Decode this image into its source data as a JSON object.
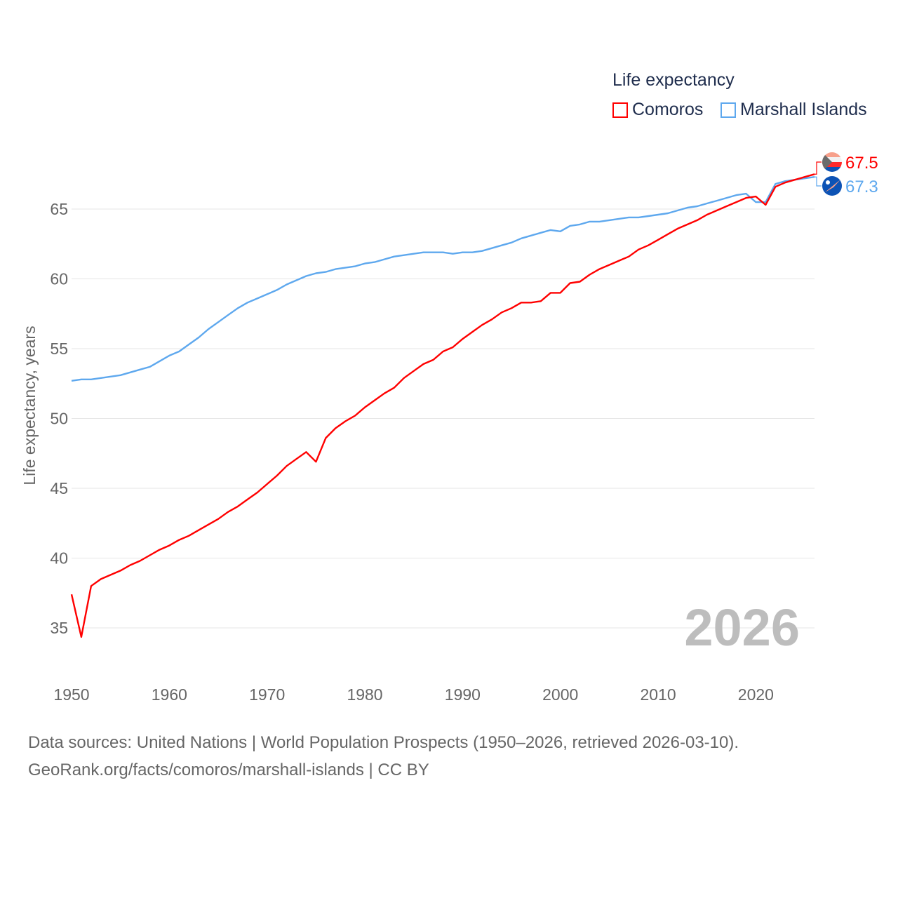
{
  "chart_data": {
    "type": "line",
    "title": "",
    "legend_title": "Life expectancy",
    "legend_position": "top-right",
    "xlabel": "",
    "ylabel": "Life expectancy, years",
    "xlim": [
      1950,
      2026
    ],
    "ylim": [
      35,
      65
    ],
    "x_ticks": [
      "1950",
      "1960",
      "1970",
      "1980",
      "1990",
      "2000",
      "2010",
      "2020"
    ],
    "y_ticks": [
      "35",
      "40",
      "45",
      "50",
      "55",
      "60",
      "65"
    ],
    "grid": true,
    "year_label": "2026",
    "x": [
      1950,
      1951,
      1952,
      1953,
      1954,
      1955,
      1956,
      1957,
      1958,
      1959,
      1960,
      1961,
      1962,
      1963,
      1964,
      1965,
      1966,
      1967,
      1968,
      1969,
      1970,
      1971,
      1972,
      1973,
      1974,
      1975,
      1976,
      1977,
      1978,
      1979,
      1980,
      1981,
      1982,
      1983,
      1984,
      1985,
      1986,
      1987,
      1988,
      1989,
      1990,
      1991,
      1992,
      1993,
      1994,
      1995,
      1996,
      1997,
      1998,
      1999,
      2000,
      2001,
      2002,
      2003,
      2004,
      2005,
      2006,
      2007,
      2008,
      2009,
      2010,
      2011,
      2012,
      2013,
      2014,
      2015,
      2016,
      2017,
      2018,
      2019,
      2020,
      2021,
      2022,
      2023,
      2024,
      2025,
      2026
    ],
    "series": [
      {
        "name": "Comoros",
        "color": "#ff0000",
        "end_label": "67.5",
        "values": [
          37.4,
          34.35,
          38.0,
          38.5,
          38.8,
          39.1,
          39.5,
          39.8,
          40.2,
          40.6,
          40.9,
          41.3,
          41.6,
          42.0,
          42.4,
          42.8,
          43.3,
          43.7,
          44.2,
          44.7,
          45.3,
          45.9,
          46.6,
          47.1,
          47.6,
          46.9,
          48.6,
          49.3,
          49.8,
          50.2,
          50.8,
          51.3,
          51.8,
          52.2,
          52.9,
          53.4,
          53.9,
          54.2,
          54.8,
          55.1,
          55.7,
          56.2,
          56.7,
          57.1,
          57.6,
          57.9,
          58.3,
          58.3,
          58.4,
          59.0,
          59.0,
          59.7,
          59.8,
          60.3,
          60.7,
          61.0,
          61.3,
          61.6,
          62.1,
          62.4,
          62.8,
          63.2,
          63.6,
          63.9,
          64.2,
          64.6,
          64.9,
          65.2,
          65.5,
          65.8,
          65.9,
          65.3,
          66.6,
          66.9,
          67.1,
          67.3,
          67.5
        ]
      },
      {
        "name": "Marshall Islands",
        "color": "#5ea8ee",
        "end_label": "67.3",
        "values": [
          52.7,
          52.8,
          52.8,
          52.9,
          53.0,
          53.1,
          53.3,
          53.5,
          53.7,
          54.1,
          54.5,
          54.8,
          55.3,
          55.8,
          56.4,
          56.9,
          57.4,
          57.9,
          58.3,
          58.6,
          58.9,
          59.2,
          59.6,
          59.9,
          60.2,
          60.4,
          60.5,
          60.7,
          60.8,
          60.9,
          61.1,
          61.2,
          61.4,
          61.6,
          61.7,
          61.8,
          61.9,
          61.9,
          61.9,
          61.8,
          61.9,
          61.9,
          62.0,
          62.2,
          62.4,
          62.6,
          62.9,
          63.1,
          63.3,
          63.5,
          63.4,
          63.8,
          63.9,
          64.1,
          64.1,
          64.2,
          64.3,
          64.4,
          64.4,
          64.5,
          64.6,
          64.7,
          64.9,
          65.1,
          65.2,
          65.4,
          65.6,
          65.8,
          66.0,
          66.1,
          65.5,
          65.5,
          66.8,
          67.0,
          67.1,
          67.2,
          67.3
        ]
      }
    ]
  },
  "footer": {
    "line1": "Data sources: United Nations | World Population Prospects (1950–2026, retrieved 2026-03-10).",
    "line2": "GeoRank.org/facts/comoros/marshall-islands | CC BY"
  },
  "icons": [
    "comoros-flag-icon",
    "marshall-islands-flag-icon"
  ]
}
